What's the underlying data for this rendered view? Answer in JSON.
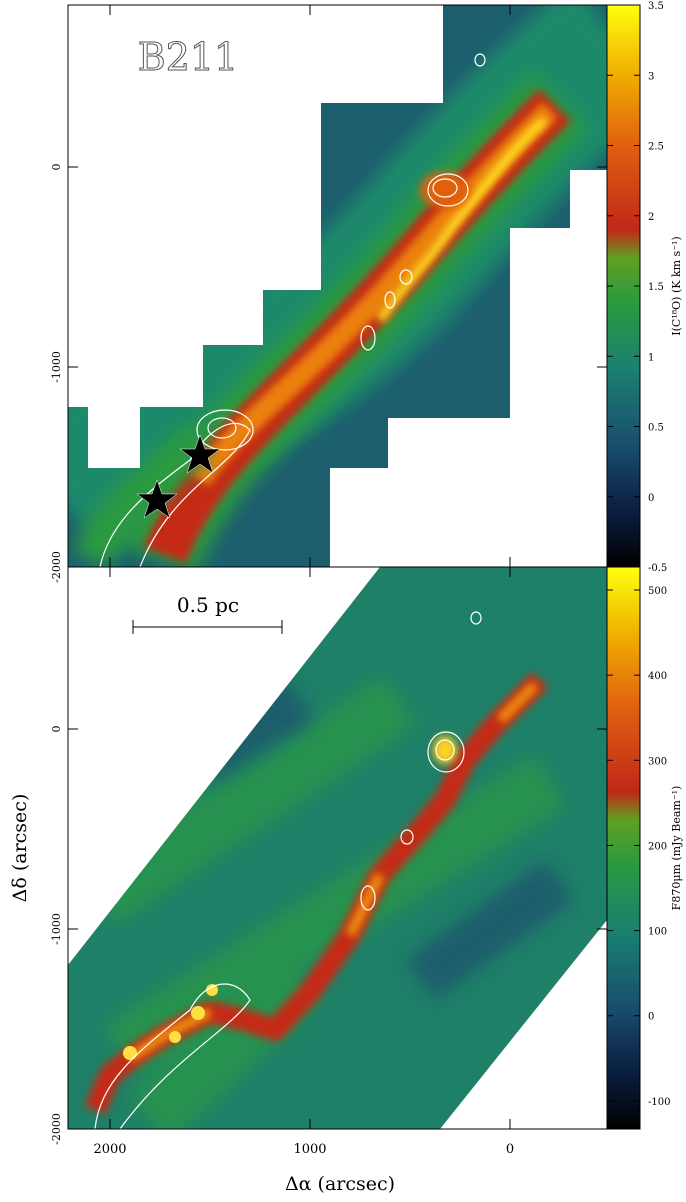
{
  "chart_data": [
    {
      "type": "image",
      "annotation": "B211",
      "xlim": [
        2210,
        -485
      ],
      "ylim": [
        -2000,
        810
      ],
      "yticks": [
        0,
        -1000,
        -2000
      ],
      "colorbar": {
        "label": "I(C¹⁸O) (K km s⁻¹)",
        "lim": [
          -0.5,
          3.5
        ],
        "ticks": [
          -0.5,
          0,
          0.5,
          1,
          1.5,
          2,
          2.5,
          3,
          3.5
        ]
      }
    },
    {
      "type": "image",
      "annotation": "0.5 pc",
      "xlabel": "Δα (arcsec)",
      "ylabel": "Δδ (arcsec)",
      "xlim": [
        2210,
        -485
      ],
      "ylim": [
        -2000,
        810
      ],
      "xticks": [
        2000,
        1000,
        0
      ],
      "yticks": [
        0,
        -1000,
        -2000
      ],
      "colorbar": {
        "label": "F870μm (mJy Beam⁻¹)",
        "lim": [
          -133,
          527
        ],
        "ticks": [
          -100,
          0,
          100,
          200,
          300,
          400,
          500
        ]
      }
    }
  ]
}
